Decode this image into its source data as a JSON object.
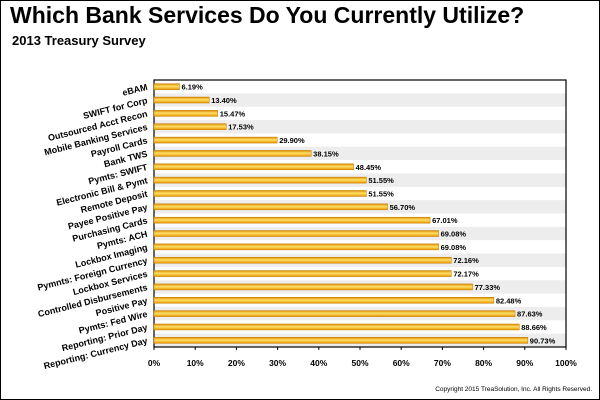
{
  "title": "Which Bank Services Do You Currently Utilize?",
  "subtitle": "2013 Treasury Survey",
  "copyright": "Copyright 2015 TreaSolution, Inc. All Rights Reserved.",
  "colors": {
    "bar": "#f5a000",
    "bar_highlight": "#ffe066",
    "band_alt": "#ededed",
    "frame": "#000000"
  },
  "chart_data": {
    "type": "bar",
    "orientation": "horizontal",
    "title": "Which Bank Services Do You Currently Utilize?",
    "subtitle": "2013 Treasury Survey",
    "categories": [
      "eBAM",
      "SWIFT for Corp",
      "Outsourced Acct Recon",
      "Mobile Banking Services",
      "Payroll Cards",
      "Bank TWS",
      "Pymts: SWIFT",
      "Electronic Bill & Pymt",
      "Remote Deposit",
      "Payee Positive Pay",
      "Purchasing Cards",
      "Pymts: ACH",
      "Lockbox Imaging",
      "Pymnts: Foreign Currency",
      "Lockbox Services",
      "Controlled Disbursements",
      "Positive Pay",
      "Pymts: Fed Wire",
      "Reporting: Prior Day",
      "Reporting: Currency Day"
    ],
    "values": [
      6.19,
      13.4,
      15.47,
      17.53,
      29.9,
      38.15,
      48.45,
      51.55,
      51.55,
      56.7,
      67.01,
      69.08,
      69.08,
      72.16,
      72.17,
      77.33,
      82.48,
      87.63,
      88.66,
      90.73
    ],
    "value_labels": [
      "6.19%",
      "13.40%",
      "15.47%",
      "17.53%",
      "29.90%",
      "38.15%",
      "48.45%",
      "51.55%",
      "51.55%",
      "56.70%",
      "67.01%",
      "69.08%",
      "69.08%",
      "72.16%",
      "72.17%",
      "77.33%",
      "82.48%",
      "87.63%",
      "88.66%",
      "90.73%"
    ],
    "xlim": [
      0,
      100
    ],
    "xticks": [
      "0%",
      "10%",
      "20%",
      "30%",
      "40%",
      "50%",
      "60%",
      "70%",
      "80%",
      "90%",
      "100%"
    ],
    "grid": false,
    "legend": "none"
  }
}
